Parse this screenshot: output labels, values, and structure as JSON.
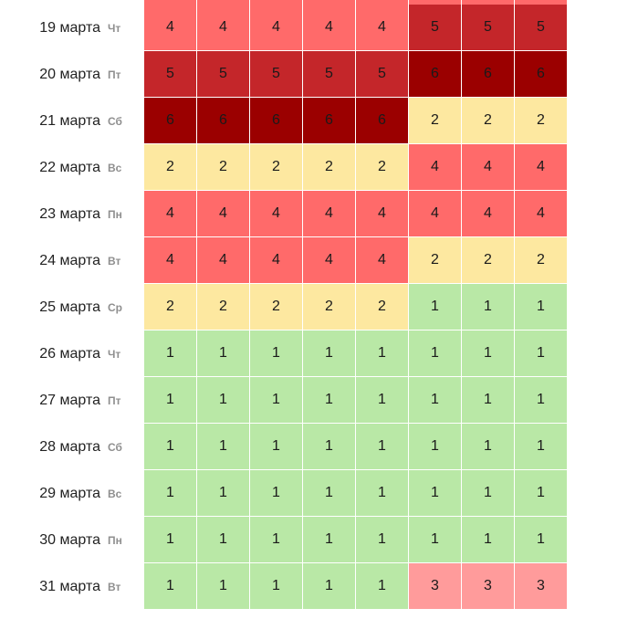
{
  "colors": {
    "level_1": "#b9e8a6",
    "level_2": "#fde8a0",
    "level_3": "#ff9b9b",
    "level_4": "#ff6a6a",
    "level_5": "#c4262a",
    "level_6": "#9b0000"
  },
  "rows": [
    {
      "date": "19 марта",
      "dow": "Чт",
      "values": [
        "4",
        "4",
        "4",
        "4",
        "4",
        "5",
        "5",
        "5"
      ]
    },
    {
      "date": "20 марта",
      "dow": "Пт",
      "values": [
        "5",
        "5",
        "5",
        "5",
        "5",
        "6",
        "6",
        "6"
      ]
    },
    {
      "date": "21 марта",
      "dow": "Сб",
      "values": [
        "6",
        "6",
        "6",
        "6",
        "6",
        "2",
        "2",
        "2"
      ]
    },
    {
      "date": "22 марта",
      "dow": "Вс",
      "values": [
        "2",
        "2",
        "2",
        "2",
        "2",
        "4",
        "4",
        "4"
      ]
    },
    {
      "date": "23 марта",
      "dow": "Пн",
      "values": [
        "4",
        "4",
        "4",
        "4",
        "4",
        "4",
        "4",
        "4"
      ]
    },
    {
      "date": "24 марта",
      "dow": "Вт",
      "values": [
        "4",
        "4",
        "4",
        "4",
        "4",
        "2",
        "2",
        "2"
      ]
    },
    {
      "date": "25 марта",
      "dow": "Ср",
      "values": [
        "2",
        "2",
        "2",
        "2",
        "2",
        "1",
        "1",
        "1"
      ]
    },
    {
      "date": "26 марта",
      "dow": "Чт",
      "values": [
        "1",
        "1",
        "1",
        "1",
        "1",
        "1",
        "1",
        "1"
      ]
    },
    {
      "date": "27 марта",
      "dow": "Пт",
      "values": [
        "1",
        "1",
        "1",
        "1",
        "1",
        "1",
        "1",
        "1"
      ]
    },
    {
      "date": "28 марта",
      "dow": "Сб",
      "values": [
        "1",
        "1",
        "1",
        "1",
        "1",
        "1",
        "1",
        "1"
      ]
    },
    {
      "date": "29 марта",
      "dow": "Вс",
      "values": [
        "1",
        "1",
        "1",
        "1",
        "1",
        "1",
        "1",
        "1"
      ]
    },
    {
      "date": "30 марта",
      "dow": "Пн",
      "values": [
        "1",
        "1",
        "1",
        "1",
        "1",
        "1",
        "1",
        "1"
      ]
    },
    {
      "date": "31 марта",
      "dow": "Вт",
      "values": [
        "1",
        "1",
        "1",
        "1",
        "1",
        "3",
        "3",
        "3"
      ]
    }
  ]
}
